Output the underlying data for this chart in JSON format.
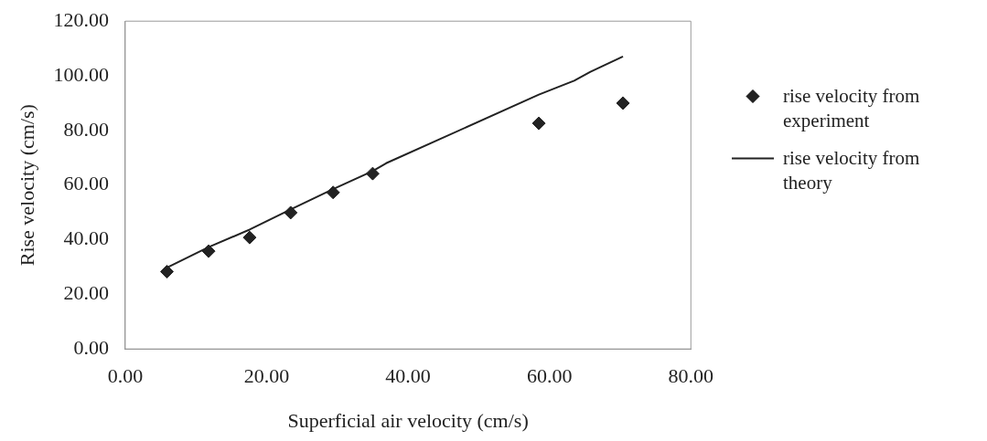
{
  "chart_data": {
    "type": "scatter",
    "xlabel": "Superficial air velocity (cm/s)",
    "ylabel": "Rise velocity (cm/s)",
    "xlim": [
      0,
      80
    ],
    "xticks": [
      {
        "value": 0,
        "label": "0.00"
      },
      {
        "value": 20,
        "label": "20.00"
      },
      {
        "value": 40,
        "label": "40.00"
      },
      {
        "value": 60,
        "label": "60.00"
      },
      {
        "value": 80,
        "label": "80.00"
      }
    ],
    "ylim": [
      0,
      120
    ],
    "yticks": [
      {
        "value": 0,
        "label": "0.00"
      },
      {
        "value": 20,
        "label": "20.00"
      },
      {
        "value": 40,
        "label": "40.00"
      },
      {
        "value": 60,
        "label": "60.00"
      },
      {
        "value": 80,
        "label": "80.00"
      },
      {
        "value": 100,
        "label": "100.00"
      },
      {
        "value": 120,
        "label": "120.00"
      }
    ],
    "grid": false,
    "legend": "right",
    "series": [
      {
        "name": "rise velocity from experiment",
        "marker": "diamond",
        "color": "#222222",
        "x": [
          5.9,
          11.8,
          17.6,
          23.4,
          29.4,
          35.0,
          58.5,
          70.4
        ],
        "values": [
          28.3,
          35.8,
          40.8,
          49.9,
          57.3,
          64.2,
          82.6,
          90.0
        ]
      },
      {
        "name": "rise velocity from theory",
        "type": "line",
        "marker": "none",
        "line_style": "solid",
        "color": "#222222",
        "x": [
          5.9,
          11.8,
          17.6,
          23.4,
          29.4,
          35.0,
          36.9,
          58.5,
          63.5,
          65.8,
          70.4
        ],
        "values": [
          29.8,
          37.3,
          43.7,
          51.1,
          58.5,
          65.1,
          68.0,
          93.1,
          98.2,
          101.5,
          107.1
        ]
      }
    ]
  }
}
